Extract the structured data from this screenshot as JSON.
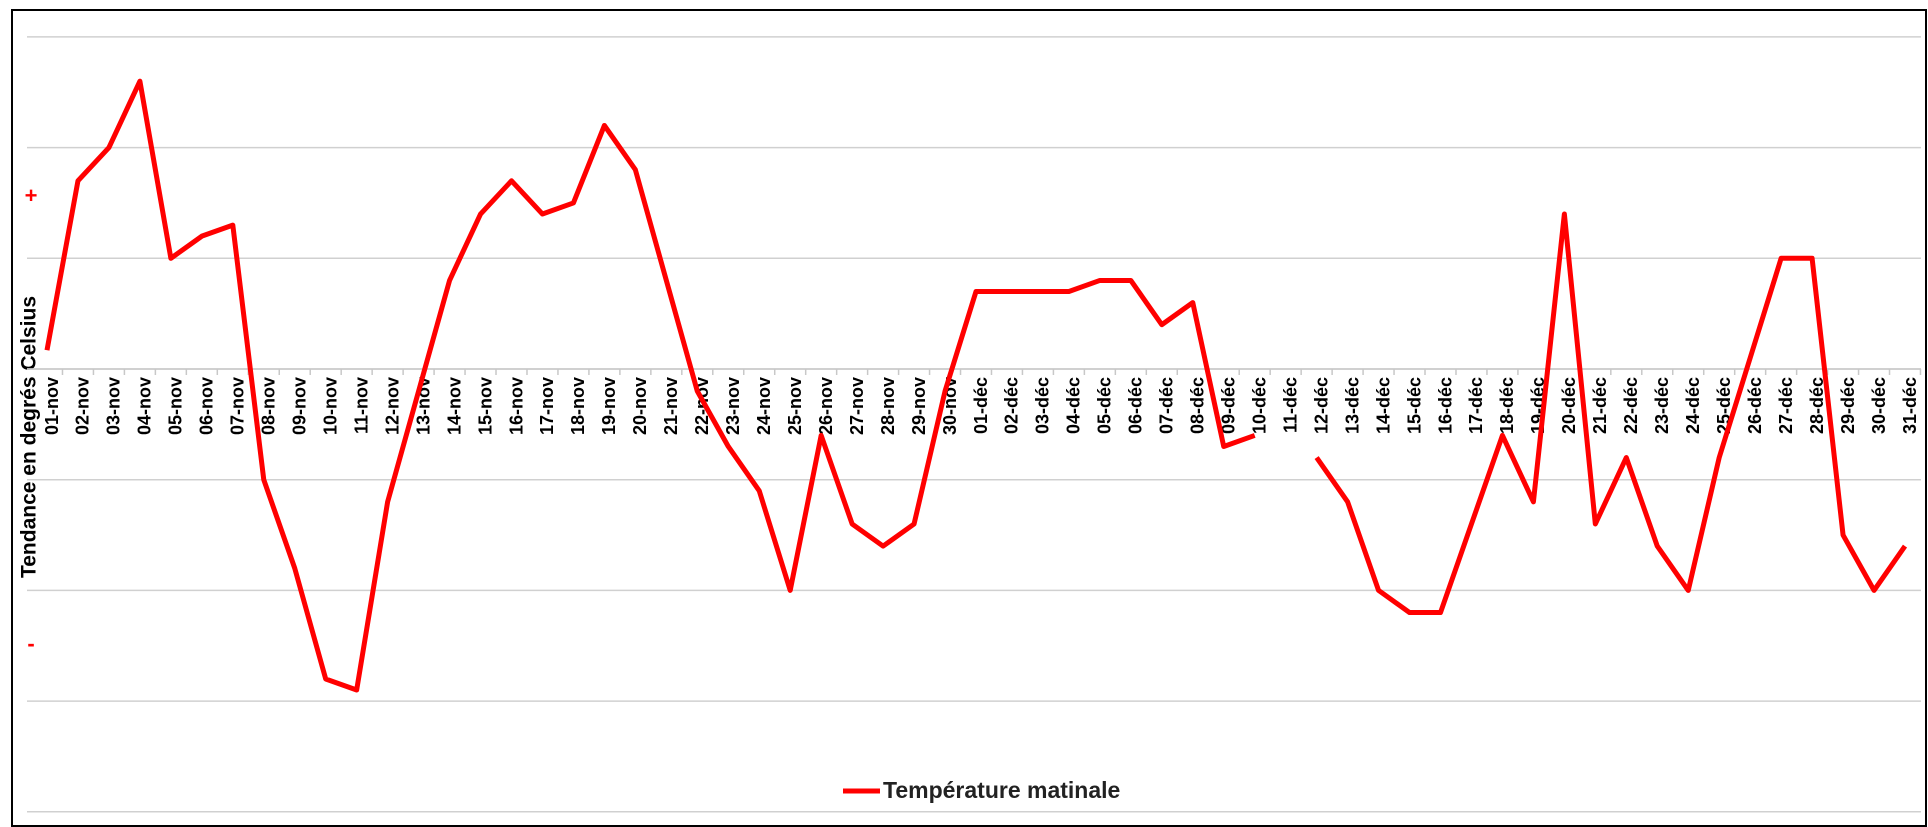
{
  "chart_data": {
    "type": "line",
    "y_axis_label": "Tendance en degrés Celsius",
    "annotations": [
      "+",
      "-"
    ],
    "categories": [
      "01-nov",
      "02-nov",
      "03-nov",
      "04-nov",
      "05-nov",
      "06-nov",
      "07-nov",
      "08-nov",
      "09-nov",
      "10-nov",
      "11-nov",
      "12-nov",
      "13-nov",
      "14-nov",
      "15-nov",
      "16-nov",
      "17-nov",
      "18-nov",
      "19-nov",
      "20-nov",
      "21-nov",
      "22-nov",
      "23-nov",
      "24-nov",
      "25-nov",
      "26-nov",
      "27-nov",
      "28-nov",
      "29-nov",
      "30-nov",
      "01-déc",
      "02-déc",
      "03-déc",
      "04-déc",
      "05-déc",
      "06-déc",
      "07-déc",
      "08-déc",
      "09-déc",
      "10-déc",
      "11-déc",
      "12-déc",
      "13-déc",
      "14-déc",
      "15-déc",
      "16-déc",
      "17-déc",
      "18-déc",
      "19-déc",
      "20-déc",
      "21-déc",
      "22-déc",
      "23-déc",
      "24-déc",
      "25-déc",
      "26-déc",
      "27-déc",
      "28-déc",
      "29-déc",
      "30-déc",
      "31-déc"
    ],
    "series": [
      {
        "name": "Température matinale",
        "color": "#ff0000",
        "values": [
          0.17,
          1.7,
          2.0,
          2.6,
          1.0,
          1.2,
          1.3,
          -1.0,
          -1.8,
          -2.8,
          -2.9,
          -1.2,
          -0.2,
          0.8,
          1.4,
          1.7,
          1.4,
          1.5,
          2.2,
          1.8,
          0.8,
          -0.2,
          -0.7,
          -1.1,
          -2.0,
          -0.6,
          -1.4,
          -1.6,
          -1.4,
          -0.2,
          0.7,
          0.7,
          0.7,
          0.7,
          0.8,
          0.8,
          0.4,
          0.6,
          -0.7,
          -0.6,
          null,
          -0.8,
          -1.2,
          -2.0,
          -2.2,
          -2.2,
          -1.4,
          -0.6,
          -1.2,
          1.4,
          -1.4,
          -0.8,
          -1.6,
          -2.0,
          -0.8,
          0.1,
          1.0,
          1.0,
          -1.5,
          -2.0,
          -1.6
        ]
      }
    ],
    "ylim": [
      -4,
      3
    ],
    "yticks": [
      -4,
      -3,
      -2,
      -1,
      0,
      1,
      2,
      3
    ],
    "grid": true,
    "legend": "bottom"
  }
}
